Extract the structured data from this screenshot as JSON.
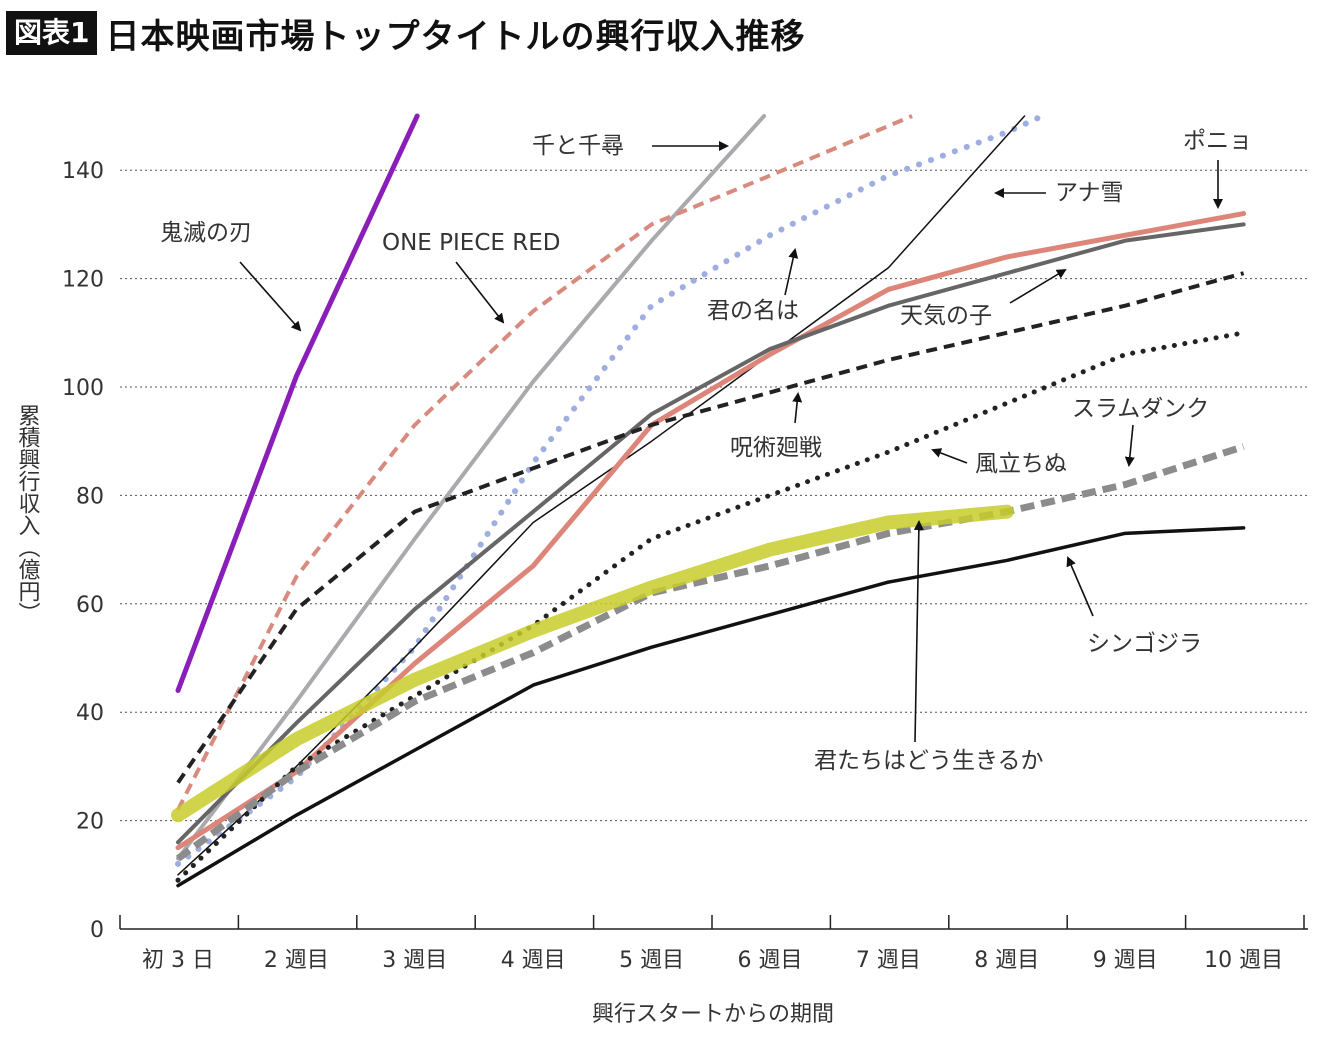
{
  "header": {
    "badge": "図表1",
    "title": "日本映画市場トップタイトルの興行収入推移"
  },
  "chart_data": {
    "type": "line",
    "title": "日本映画市場トップタイトルの興行収入推移",
    "xlabel": "興行スタートからの期間",
    "ylabel": "累積興行収入（億円）",
    "ylim": [
      0,
      150
    ],
    "yticks": [
      0,
      20,
      40,
      60,
      80,
      100,
      120,
      140
    ],
    "grid": "horizontal dotted",
    "categories": [
      "初 3 日",
      "2 週目",
      "3 週目",
      "4 週目",
      "5 週目",
      "6 週目",
      "7 週目",
      "8 週目",
      "9 週目",
      "10 週目"
    ],
    "series": [
      {
        "name": "鬼滅の刃",
        "color": "#8a1eb8",
        "style": "solid",
        "width": 5,
        "x": [
          0,
          1,
          2.02
        ],
        "y": [
          44,
          102,
          150
        ]
      },
      {
        "name": "千と千尋",
        "color": "#a9a9ae",
        "style": "solid",
        "width": 4,
        "x": [
          0,
          1,
          2,
          3,
          4,
          4.95
        ],
        "y": [
          13,
          42,
          72,
          101,
          127,
          150
        ]
      },
      {
        "name": "ONE PIECE RED",
        "color": "#d98a7e",
        "style": "dashed",
        "width": 4,
        "x": [
          0,
          1,
          2,
          3,
          4,
          5,
          6.2
        ],
        "y": [
          22,
          65,
          93,
          114,
          130,
          139,
          150
        ]
      },
      {
        "name": "君の名は",
        "color": "#9eaee0",
        "style": "dotted",
        "width": 6,
        "x": [
          0,
          1,
          2,
          3,
          4,
          5,
          6,
          7,
          7.3
        ],
        "y": [
          12,
          28,
          52,
          86,
          115,
          128,
          139,
          147,
          150
        ]
      },
      {
        "name": "アナ雪",
        "color": "#111111",
        "style": "solid",
        "width": 1.5,
        "x": [
          0,
          1,
          2,
          3,
          4,
          5,
          6,
          7.15
        ],
        "y": [
          10,
          30,
          52,
          75,
          90,
          106,
          122,
          150
        ]
      },
      {
        "name": "ポニョ",
        "color": "#dd8578",
        "style": "solid",
        "width": 5,
        "x": [
          0,
          1,
          2,
          3,
          4,
          5,
          6,
          7,
          8,
          9
        ],
        "y": [
          15,
          29,
          49,
          67,
          93,
          106,
          118,
          124,
          128,
          132
        ]
      },
      {
        "name": "天気の子",
        "color": "#666666",
        "style": "solid",
        "width": 4,
        "x": [
          0,
          1,
          2,
          3,
          4,
          5,
          6,
          7,
          8,
          9
        ],
        "y": [
          16,
          38,
          59,
          77,
          95,
          107,
          115,
          121,
          127,
          130
        ]
      },
      {
        "name": "呪術廻戦",
        "color": "#222222",
        "style": "dashed",
        "width": 4,
        "x": [
          0,
          1,
          2,
          3,
          4,
          5,
          6,
          7,
          8,
          9
        ],
        "y": [
          27,
          59,
          77,
          85,
          93,
          99,
          105,
          110,
          115,
          121
        ]
      },
      {
        "name": "風立ちぬ",
        "color": "#222222",
        "style": "dotted",
        "width": 5,
        "x": [
          0,
          1,
          2,
          3,
          4,
          5,
          6,
          7,
          8,
          9
        ],
        "y": [
          9,
          30,
          43,
          56,
          72,
          80,
          88,
          97,
          106,
          110
        ]
      },
      {
        "name": "スラムダンク",
        "color": "#8c8c8c",
        "style": "dashed",
        "width": 7,
        "x": [
          0,
          1,
          2,
          3,
          4,
          5,
          6,
          7,
          8,
          9
        ],
        "y": [
          13,
          29,
          42,
          51,
          62,
          67,
          73,
          77,
          82,
          89
        ]
      },
      {
        "name": "シンゴジラ",
        "color": "#111111",
        "style": "solid",
        "width": 3.5,
        "x": [
          0,
          1,
          2,
          3,
          4,
          5,
          6,
          7,
          8,
          9
        ],
        "y": [
          8,
          21,
          33,
          45,
          52,
          58,
          64,
          68,
          73,
          74
        ]
      },
      {
        "name": "君たちはどう生きるか",
        "color": "#c8cc2a",
        "style": "solid",
        "width": 14,
        "x": [
          0,
          1,
          2,
          3,
          4,
          5,
          6,
          7
        ],
        "y": [
          21,
          35,
          46,
          55,
          63,
          70,
          75,
          77
        ]
      }
    ],
    "annotations": [
      {
        "text": "千と千尋",
        "series": "千と千尋"
      },
      {
        "text": "ポニョ",
        "series": "ポニョ"
      },
      {
        "text": "アナ雪",
        "series": "アナ雪"
      },
      {
        "text": "鬼滅の刃",
        "series": "鬼滅の刃"
      },
      {
        "text": "ONE PIECE RED",
        "series": "ONE PIECE RED"
      },
      {
        "text": "君の名は",
        "series": "君の名は"
      },
      {
        "text": "天気の子",
        "series": "天気の子"
      },
      {
        "text": "呪術廻戦",
        "series": "呪術廻戦"
      },
      {
        "text": "風立ちぬ",
        "series": "風立ちぬ"
      },
      {
        "text": "スラムダンク",
        "series": "スラムダンク"
      },
      {
        "text": "シンゴジラ",
        "series": "シンゴジラ"
      },
      {
        "text": "君たちはどう生きるか",
        "series": "君たちはどう生きるか"
      }
    ]
  }
}
